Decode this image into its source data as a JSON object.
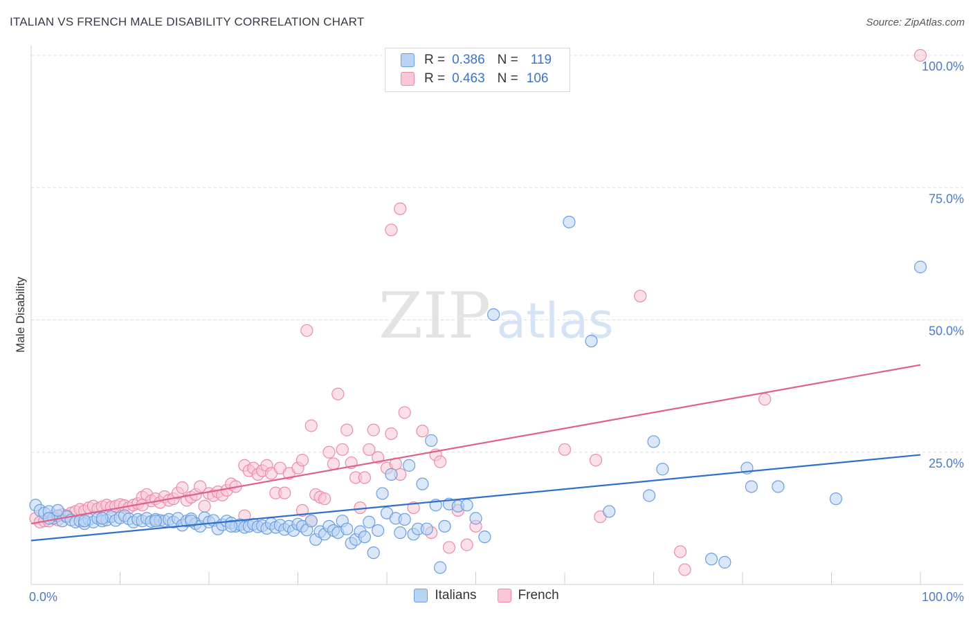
{
  "title": "ITALIAN VS FRENCH MALE DISABILITY CORRELATION CHART",
  "source": "Source: ZipAtlas.com",
  "watermark": {
    "zip": "ZIP",
    "atlas": "atlas"
  },
  "colors": {
    "italians_fill": "#b9d3f4",
    "italians_stroke": "#6a9ee0",
    "italians_line": "#2f6fce",
    "french_fill": "#f8c6d6",
    "french_stroke": "#ec8aaa",
    "french_line": "#e0608c",
    "tick_label": "#4a7cc9",
    "grid": "#dcdcdc"
  },
  "legend": {
    "rows": [
      {
        "series": "Italians",
        "r_label": "R =",
        "r_value": "0.386",
        "n_label": "N =",
        "n_value": "119"
      },
      {
        "series": "French",
        "r_label": "R =",
        "r_value": "0.463",
        "n_label": "N =",
        "n_value": "106"
      }
    ]
  },
  "chart_data": {
    "type": "scatter",
    "title": "ITALIAN VS FRENCH MALE DISABILITY CORRELATION CHART",
    "xlabel": "",
    "ylabel": "Male Disability",
    "xlim": [
      0,
      100
    ],
    "ylim": [
      0,
      100
    ],
    "x_tick_labels": [
      {
        "value": 0,
        "label": "0.0%"
      },
      {
        "value": 100,
        "label": "100.0%"
      }
    ],
    "y_tick_labels": [
      {
        "value": 25,
        "label": "25.0%"
      },
      {
        "value": 50,
        "label": "50.0%"
      },
      {
        "value": 75,
        "label": "75.0%"
      },
      {
        "value": 100,
        "label": "100.0%"
      }
    ],
    "grid": true,
    "legend_position": "top-center",
    "series": [
      {
        "name": "Italians",
        "r": 0.386,
        "n": 119,
        "trend": {
          "x": [
            0,
            100
          ],
          "y": [
            8.3,
            24.5
          ]
        },
        "points": [
          [
            0.5,
            15.0
          ],
          [
            1.0,
            14.0
          ],
          [
            1.5,
            13.5
          ],
          [
            2.0,
            13.8
          ],
          [
            2.5,
            12.5
          ],
          [
            3.0,
            13.0
          ],
          [
            3.5,
            12.0
          ],
          [
            4.0,
            12.8
          ],
          [
            4.5,
            12.2
          ],
          [
            5.0,
            11.8
          ],
          [
            5.5,
            12.0
          ],
          [
            6.0,
            11.5
          ],
          [
            6.5,
            12.3
          ],
          [
            7.0,
            11.8
          ],
          [
            7.5,
            12.5
          ],
          [
            8.0,
            12.0
          ],
          [
            8.5,
            12.2
          ],
          [
            9.0,
            12.8
          ],
          [
            9.5,
            12.1
          ],
          [
            10.0,
            12.6
          ],
          [
            10.5,
            13.0
          ],
          [
            11.0,
            12.4
          ],
          [
            11.5,
            11.8
          ],
          [
            12.0,
            12.3
          ],
          [
            12.5,
            12.0
          ],
          [
            13.0,
            12.5
          ],
          [
            13.5,
            11.9
          ],
          [
            14.0,
            12.3
          ],
          [
            14.5,
            12.1
          ],
          [
            15.0,
            12.0
          ],
          [
            15.5,
            12.3
          ],
          [
            16.0,
            11.8
          ],
          [
            16.5,
            12.5
          ],
          [
            17.0,
            11.2
          ],
          [
            17.5,
            12.0
          ],
          [
            18.0,
            12.4
          ],
          [
            18.5,
            11.5
          ],
          [
            19.0,
            11.0
          ],
          [
            19.5,
            12.6
          ],
          [
            20.0,
            11.8
          ],
          [
            20.5,
            12.1
          ],
          [
            21.0,
            10.5
          ],
          [
            21.5,
            11.3
          ],
          [
            22.0,
            12.0
          ],
          [
            22.5,
            11.6
          ],
          [
            23.0,
            11.0
          ],
          [
            23.5,
            11.3
          ],
          [
            24.0,
            10.8
          ],
          [
            24.5,
            11.0
          ],
          [
            25.0,
            11.4
          ],
          [
            25.5,
            10.9
          ],
          [
            26.0,
            11.1
          ],
          [
            26.5,
            10.6
          ],
          [
            27.0,
            11.5
          ],
          [
            27.5,
            10.8
          ],
          [
            28.0,
            11.2
          ],
          [
            28.5,
            10.4
          ],
          [
            29.0,
            11.0
          ],
          [
            29.5,
            10.2
          ],
          [
            30.0,
            11.4
          ],
          [
            30.5,
            11.0
          ],
          [
            31.0,
            10.3
          ],
          [
            31.5,
            12.0
          ],
          [
            32.0,
            8.5
          ],
          [
            32.5,
            10.0
          ],
          [
            33.0,
            9.5
          ],
          [
            33.5,
            11.0
          ],
          [
            34.0,
            10.2
          ],
          [
            34.5,
            9.8
          ],
          [
            35.0,
            12.0
          ],
          [
            35.5,
            10.5
          ],
          [
            36.0,
            7.8
          ],
          [
            36.5,
            8.5
          ],
          [
            37.0,
            10.0
          ],
          [
            37.5,
            9.0
          ],
          [
            38.0,
            11.8
          ],
          [
            38.5,
            6.0
          ],
          [
            39.0,
            10.2
          ],
          [
            39.5,
            17.2
          ],
          [
            40.0,
            13.5
          ],
          [
            40.5,
            20.8
          ],
          [
            41.0,
            12.5
          ],
          [
            41.5,
            9.8
          ],
          [
            42.0,
            12.3
          ],
          [
            42.5,
            22.5
          ],
          [
            43.0,
            9.5
          ],
          [
            43.5,
            10.5
          ],
          [
            44.0,
            19.0
          ],
          [
            44.5,
            10.5
          ],
          [
            45.0,
            27.2
          ],
          [
            45.5,
            15.0
          ],
          [
            46.0,
            3.2
          ],
          [
            46.5,
            11.0
          ],
          [
            47.0,
            15.2
          ],
          [
            48.0,
            14.8
          ],
          [
            49.0,
            15.0
          ],
          [
            50.0,
            12.5
          ],
          [
            51.0,
            9.0
          ],
          [
            52.0,
            51.0
          ],
          [
            60.5,
            68.5
          ],
          [
            63.0,
            46.0
          ],
          [
            70.0,
            27.0
          ],
          [
            71.0,
            21.8
          ],
          [
            69.5,
            16.8
          ],
          [
            65.0,
            13.8
          ],
          [
            80.5,
            22.0
          ],
          [
            81.0,
            18.5
          ],
          [
            84.0,
            18.5
          ],
          [
            90.5,
            16.2
          ],
          [
            76.5,
            4.8
          ],
          [
            78.0,
            4.2
          ],
          [
            100.0,
            60.0
          ],
          [
            3.0,
            14.0
          ],
          [
            2.0,
            12.5
          ],
          [
            6.0,
            12.0
          ],
          [
            8.0,
            12.5
          ],
          [
            14.0,
            12.0
          ],
          [
            18.0,
            12.0
          ],
          [
            22.5,
            11.0
          ]
        ]
      },
      {
        "name": "French",
        "r": 0.463,
        "n": 106,
        "trend": {
          "x": [
            0,
            100
          ],
          "y": [
            11.5,
            41.5
          ]
        },
        "points": [
          [
            0.5,
            12.5
          ],
          [
            1.0,
            11.8
          ],
          [
            1.5,
            12.0
          ],
          [
            2.0,
            12.5
          ],
          [
            2.5,
            13.0
          ],
          [
            3.0,
            12.2
          ],
          [
            3.5,
            13.2
          ],
          [
            4.0,
            13.0
          ],
          [
            4.5,
            13.5
          ],
          [
            5.0,
            13.8
          ],
          [
            5.5,
            14.2
          ],
          [
            6.0,
            13.9
          ],
          [
            6.5,
            14.5
          ],
          [
            7.0,
            14.8
          ],
          [
            7.5,
            14.3
          ],
          [
            8.0,
            14.7
          ],
          [
            8.5,
            15.0
          ],
          [
            9.0,
            14.6
          ],
          [
            9.5,
            14.8
          ],
          [
            10.0,
            15.1
          ],
          [
            10.5,
            14.9
          ],
          [
            11.0,
            14.5
          ],
          [
            11.5,
            15.0
          ],
          [
            12.0,
            15.3
          ],
          [
            12.5,
            16.5
          ],
          [
            13.0,
            17.0
          ],
          [
            13.5,
            15.8
          ],
          [
            14.0,
            16.2
          ],
          [
            14.5,
            15.5
          ],
          [
            15.0,
            16.6
          ],
          [
            15.5,
            15.9
          ],
          [
            16.0,
            16.2
          ],
          [
            16.5,
            17.3
          ],
          [
            17.0,
            18.3
          ],
          [
            17.5,
            15.9
          ],
          [
            18.0,
            16.5
          ],
          [
            18.5,
            17.0
          ],
          [
            19.0,
            18.5
          ],
          [
            19.5,
            14.8
          ],
          [
            20.0,
            17.2
          ],
          [
            20.5,
            16.8
          ],
          [
            21.0,
            17.5
          ],
          [
            21.5,
            16.9
          ],
          [
            22.0,
            17.8
          ],
          [
            22.5,
            19.0
          ],
          [
            23.0,
            18.5
          ],
          [
            24.0,
            22.5
          ],
          [
            24.5,
            21.5
          ],
          [
            25.0,
            22.0
          ],
          [
            25.5,
            20.8
          ],
          [
            26.0,
            21.5
          ],
          [
            26.5,
            22.5
          ],
          [
            27.0,
            21.0
          ],
          [
            27.5,
            17.3
          ],
          [
            28.0,
            22.0
          ],
          [
            28.5,
            17.3
          ],
          [
            29.0,
            21.0
          ],
          [
            30.0,
            22.0
          ],
          [
            30.5,
            23.5
          ],
          [
            31.0,
            48.0
          ],
          [
            31.5,
            30.0
          ],
          [
            32.0,
            17.0
          ],
          [
            32.5,
            16.5
          ],
          [
            33.0,
            16.2
          ],
          [
            33.5,
            25.0
          ],
          [
            34.0,
            22.8
          ],
          [
            34.5,
            36.0
          ],
          [
            35.0,
            25.5
          ],
          [
            35.5,
            29.2
          ],
          [
            36.0,
            23.0
          ],
          [
            36.5,
            20.2
          ],
          [
            37.0,
            14.5
          ],
          [
            37.5,
            20.2
          ],
          [
            38.0,
            25.5
          ],
          [
            38.5,
            29.2
          ],
          [
            39.0,
            24.0
          ],
          [
            40.0,
            22.0
          ],
          [
            40.5,
            28.5
          ],
          [
            41.0,
            22.8
          ],
          [
            41.5,
            20.8
          ],
          [
            42.0,
            32.5
          ],
          [
            43.0,
            14.5
          ],
          [
            44.0,
            29.0
          ],
          [
            45.0,
            9.8
          ],
          [
            45.5,
            24.5
          ],
          [
            46.0,
            23.2
          ],
          [
            47.0,
            7.0
          ],
          [
            48.0,
            14.0
          ],
          [
            49.0,
            7.5
          ],
          [
            50.0,
            11.0
          ],
          [
            40.5,
            67.0
          ],
          [
            41.5,
            71.0
          ],
          [
            60.0,
            25.5
          ],
          [
            63.5,
            23.5
          ],
          [
            64.0,
            12.8
          ],
          [
            68.5,
            54.5
          ],
          [
            73.0,
            6.2
          ],
          [
            73.5,
            2.8
          ],
          [
            82.5,
            35.0
          ],
          [
            100.0,
            100.0
          ],
          [
            2.0,
            12.0
          ],
          [
            4.0,
            13.0
          ],
          [
            12.5,
            15.0
          ],
          [
            24.0,
            13.0
          ],
          [
            30.5,
            14.0
          ],
          [
            31.5,
            12.0
          ]
        ]
      }
    ]
  }
}
